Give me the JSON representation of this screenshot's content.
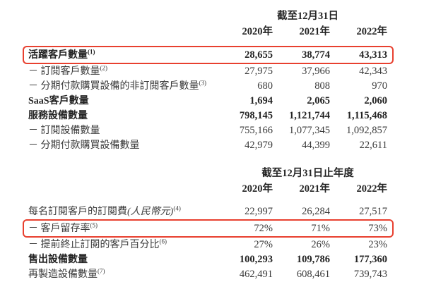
{
  "page": {
    "background_color": "#ffffff",
    "text_color": "#3a3a3a",
    "highlight_color": "#e8402f"
  },
  "section1": {
    "period_header": "截至12月31日",
    "years": [
      "2020年",
      "2021年",
      "2022年"
    ],
    "rows": [
      {
        "label": "活躍客戶數量",
        "sup": "(1)",
        "values": [
          "28,655",
          "38,774",
          "43,313"
        ]
      },
      {
        "label": "－ 訂閱客戶數量",
        "sup": "(2)",
        "values": [
          "27,975",
          "37,966",
          "42,343"
        ]
      },
      {
        "label": "－ 分期付款購買設備的非訂閱客戶數量",
        "sup": "(3)",
        "values": [
          "680",
          "808",
          "970"
        ]
      },
      {
        "label": "SaaS客戶數量",
        "sup": "",
        "values": [
          "1,694",
          "2,065",
          "2,060"
        ]
      },
      {
        "label": "服務設備數量",
        "sup": "",
        "values": [
          "798,145",
          "1,121,744",
          "1,115,468"
        ]
      },
      {
        "label": "－ 訂閱設備數量",
        "sup": "",
        "values": [
          "755,166",
          "1,077,345",
          "1,092,857"
        ]
      },
      {
        "label": "－ 分期付款購買設備數量",
        "sup": "",
        "values": [
          "42,979",
          "44,399",
          "22,611"
        ]
      }
    ]
  },
  "section2": {
    "period_header": "截至12月31日止年度",
    "years": [
      "2020年",
      "2021年",
      "2022年"
    ],
    "rows": [
      {
        "label": "每名訂閱客戶的訂閱費",
        "label_italic": "(人民幣元)",
        "sup": "(4)",
        "values": [
          "22,997",
          "26,284",
          "27,517"
        ]
      },
      {
        "label": "－ 客戶留存率",
        "sup": "(5)",
        "values": [
          "72%",
          "71%",
          "73%"
        ]
      },
      {
        "label": "－ 提前終止訂閱的客戶百分比",
        "sup": "(6)",
        "values": [
          "27%",
          "26%",
          "23%"
        ]
      },
      {
        "label": "售出設備數量",
        "sup": "",
        "values": [
          "100,293",
          "109,786",
          "177,360"
        ]
      },
      {
        "label": "再製造設備數量",
        "sup": "(7)",
        "values": [
          "462,491",
          "608,461",
          "739,743"
        ]
      }
    ]
  }
}
